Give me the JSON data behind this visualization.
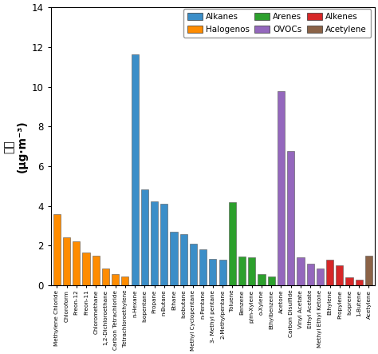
{
  "categories": [
    "Methylene Chloride",
    "Chloroform",
    "Freon-12",
    "Freon-11",
    "Chloromethane",
    "1,2-Dichloroethane",
    "Carbon Tetrachloride",
    "Tetrachloroethylene",
    "n-Hexane",
    "Isopentane",
    "Propane",
    "n-Butane",
    "Ethane",
    "Isobutane",
    "Methyl Cyclopentane",
    "n-Pentane",
    "3- Methyl pentane",
    "2-Methylpentane",
    "Toluene",
    "Benzene",
    "p/m-Xylene",
    "o-Xylene",
    "Ethylbenzene",
    "Acetone",
    "Carbon Disulfide",
    "Vinyl Acetate",
    "Ethyl Acetate",
    "Methyl Ethyl Ketone",
    "Ethylene",
    "Propylene",
    "Isoprene",
    "1-Butene",
    "Acetylene"
  ],
  "values": [
    3.6,
    2.4,
    2.2,
    1.65,
    1.5,
    0.85,
    0.55,
    0.45,
    11.65,
    4.85,
    4.25,
    4.1,
    2.7,
    2.6,
    2.1,
    1.8,
    1.35,
    1.3,
    4.2,
    1.45,
    1.4,
    0.55,
    0.45,
    9.8,
    6.75,
    1.4,
    1.1,
    0.85,
    1.3,
    1.0,
    0.4,
    0.3,
    1.5
  ],
  "colors": [
    "#FF8C00",
    "#FF8C00",
    "#FF8C00",
    "#FF8C00",
    "#FF8C00",
    "#FF8C00",
    "#FF8C00",
    "#FF8C00",
    "#3B8EC8",
    "#3B8EC8",
    "#3B8EC8",
    "#3B8EC8",
    "#3B8EC8",
    "#3B8EC8",
    "#3B8EC8",
    "#3B8EC8",
    "#3B8EC8",
    "#3B8EC8",
    "#2CA02C",
    "#2CA02C",
    "#2CA02C",
    "#2CA02C",
    "#2CA02C",
    "#9467BD",
    "#9467BD",
    "#9467BD",
    "#9467BD",
    "#9467BD",
    "#D62728",
    "#D62728",
    "#D62728",
    "#D62728",
    "#8B6347"
  ],
  "legend_labels": [
    "Alkanes",
    "Halogenos",
    "Arenes",
    "OVOCs",
    "Alkenes",
    "Acetylene"
  ],
  "legend_colors": [
    "#3B8EC8",
    "#FF8C00",
    "#2CA02C",
    "#9467BD",
    "#D62728",
    "#8B6347"
  ],
  "ylabel_chinese": "浓度",
  "ylabel_units": "(μg·m⁻³)",
  "ylim": [
    0,
    14
  ],
  "yticks": [
    0,
    2,
    4,
    6,
    8,
    10,
    12,
    14
  ],
  "background_color": "#FFFFFF"
}
